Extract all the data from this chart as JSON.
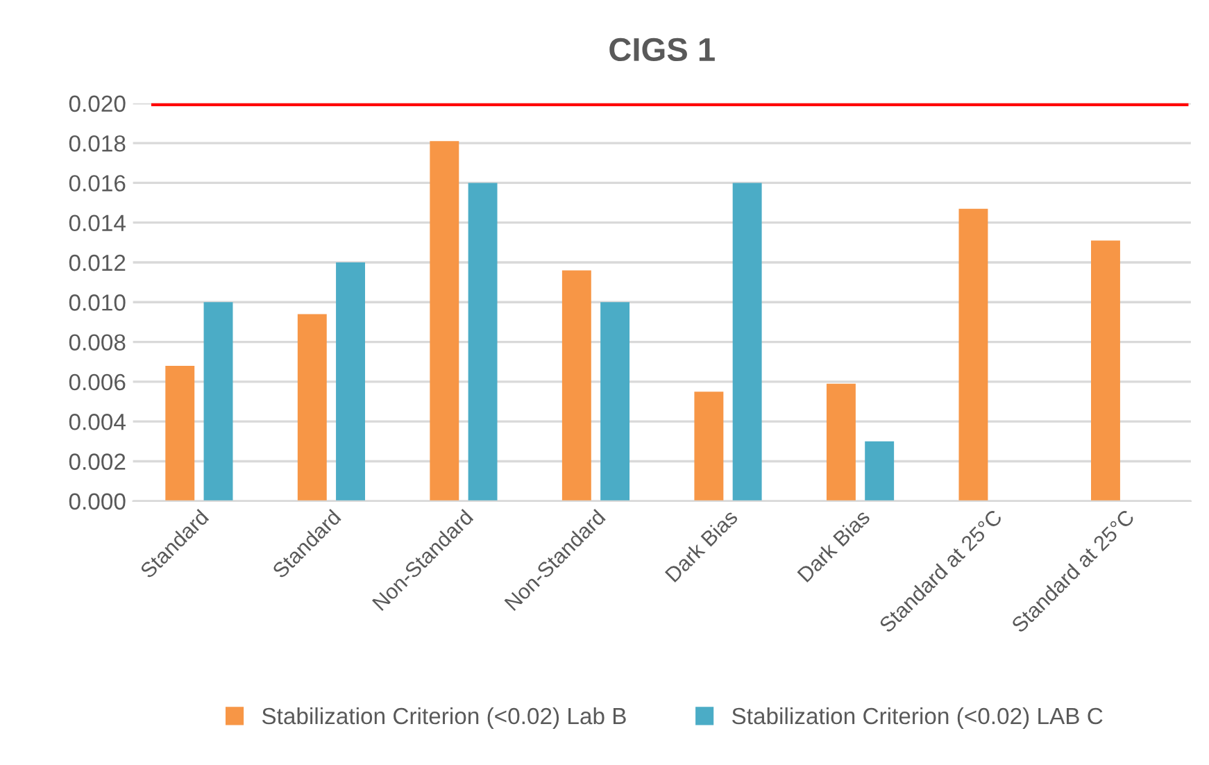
{
  "chart_data": {
    "type": "bar",
    "title": "CIGS 1",
    "categories": [
      "Standard",
      "Standard",
      "Non-Standard",
      "Non-Standard",
      "Dark Bias",
      "Dark Bias",
      "Standard at 25°C",
      "Standard at 25°C"
    ],
    "series": [
      {
        "name": "Stabilization Criterion (<0.02) Lab B",
        "color": "#f79646",
        "values": [
          0.0068,
          0.0094,
          0.0181,
          0.0116,
          0.0055,
          0.0059,
          0.0147,
          0.0131
        ]
      },
      {
        "name": "Stabilization Criterion (<0.02) LAB C",
        "color": "#4bacc6",
        "values": [
          0.01,
          0.012,
          0.016,
          0.01,
          0.016,
          0.003,
          null,
          null
        ]
      }
    ],
    "ylim": [
      0,
      0.02
    ],
    "yticks": [
      {
        "value": 0,
        "label": "0.000"
      },
      {
        "value": 0.002,
        "label": "0.002"
      },
      {
        "value": 0.004,
        "label": "0.004"
      },
      {
        "value": 0.006,
        "label": "0.006"
      },
      {
        "value": 0.008,
        "label": "0.008"
      },
      {
        "value": 0.01,
        "label": "0.010"
      },
      {
        "value": 0.012,
        "label": "0.012"
      },
      {
        "value": 0.014,
        "label": "0.014"
      },
      {
        "value": 0.016,
        "label": "0.016"
      },
      {
        "value": 0.018,
        "label": "0.018"
      },
      {
        "value": 0.02,
        "label": "0.020"
      }
    ],
    "ref_lines": [
      {
        "axis": "y",
        "value": 0.02,
        "color": "#ff0000"
      }
    ],
    "grid": "y",
    "legend": "bottom"
  }
}
